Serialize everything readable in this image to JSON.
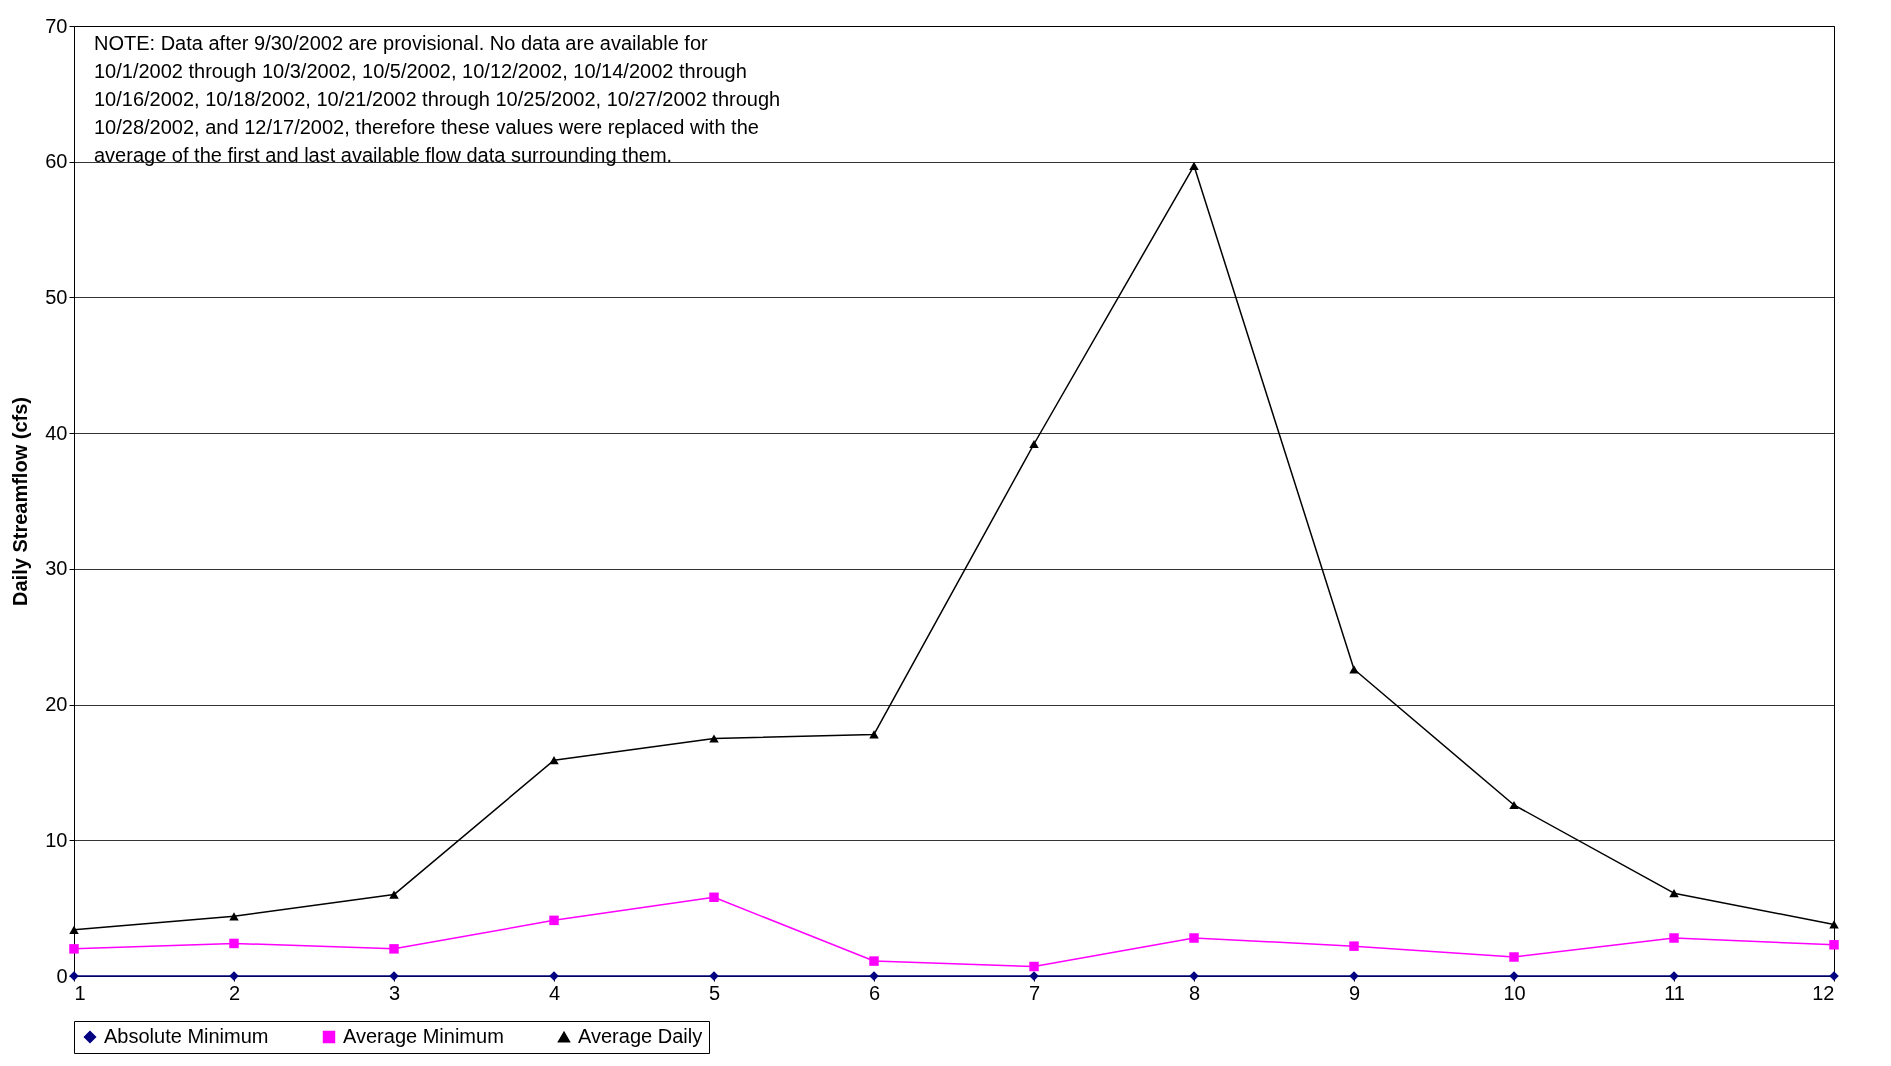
{
  "chart_data": {
    "type": "line",
    "ylabel": "Daily Streamflow (cfs)",
    "annotations": [
      "NOTE:  Data after 9/30/2002 are provisional.  No data are available for 10/1/2002 through 10/3/2002, 10/5/2002, 10/12/2002, 10/14/2002 through 10/16/2002, 10/18/2002, 10/21/2002 through 10/25/2002, 10/27/2002 through 10/28/2002,  and 12/17/2002, therefore these values were replaced with the average of the first and last available flow data surrounding them."
    ],
    "x": [
      1,
      2,
      3,
      4,
      5,
      6,
      7,
      8,
      9,
      10,
      11,
      12
    ],
    "xlim": [
      1,
      12
    ],
    "xticks": [
      1,
      2,
      3,
      4,
      5,
      6,
      7,
      8,
      9,
      10,
      11,
      12
    ],
    "ylim": [
      0,
      70
    ],
    "yticks": [
      0,
      10,
      20,
      30,
      40,
      50,
      60,
      70
    ],
    "grid": "y",
    "legend": "bottom",
    "series": [
      {
        "name": "Absolute Minimum",
        "color": "#000080",
        "marker": "diamond",
        "values": [
          0,
          0,
          0,
          0,
          0,
          0,
          0,
          0,
          0,
          0,
          0,
          0
        ]
      },
      {
        "name": "Average Minimum",
        "color": "#ff00ff",
        "marker": "square",
        "values": [
          2.0,
          2.4,
          2.0,
          4.1,
          5.8,
          1.1,
          0.7,
          2.8,
          2.2,
          1.4,
          2.8,
          2.3
        ]
      },
      {
        "name": "Average Daily",
        "color": "#000000",
        "marker": "triangle",
        "values": [
          3.4,
          4.4,
          6.0,
          15.9,
          17.5,
          17.8,
          39.2,
          59.7,
          22.6,
          12.6,
          6.1,
          3.8
        ]
      }
    ]
  }
}
